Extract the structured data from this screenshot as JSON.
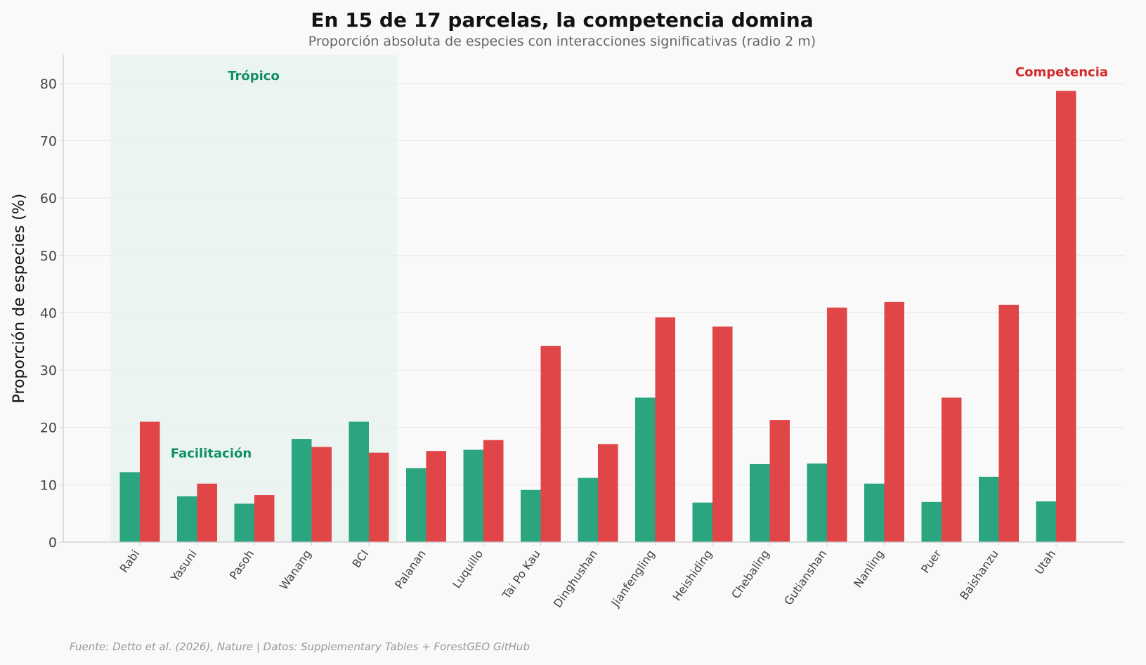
{
  "chart_data": {
    "type": "bar",
    "title": "En 15 de 17 parcelas, la competencia domina",
    "subtitle": "Proporción absoluta de especies con interacciones significativas (radio 2 m)",
    "ylabel": "Proporción de especies (%)",
    "xlabel": "",
    "ylim": [
      0,
      85
    ],
    "yticks": [
      0,
      10,
      20,
      30,
      40,
      50,
      60,
      70,
      80
    ],
    "grid": "horizontal",
    "categories": [
      "Rabi",
      "Yasuni",
      "Pasoh",
      "Wanang",
      "BCI",
      "Palanan",
      "Luquillo",
      "Tai Po Kau",
      "Dinghushan",
      "Jianfengling",
      "Heishiding",
      "Chebaling",
      "Gutianshan",
      "Nanling",
      "Puer",
      "Baishanzu",
      "Utah"
    ],
    "series": [
      {
        "name": "Facilitación",
        "color": "#2aa580",
        "values": [
          12.2,
          8.0,
          6.7,
          18.0,
          21.0,
          12.9,
          16.1,
          9.1,
          11.2,
          25.2,
          6.9,
          13.6,
          13.7,
          10.2,
          7.0,
          11.4,
          7.1
        ]
      },
      {
        "name": "Competencia",
        "color": "#e04547",
        "values": [
          21.0,
          10.2,
          8.2,
          16.6,
          15.6,
          15.9,
          17.8,
          34.2,
          17.1,
          39.2,
          37.6,
          21.3,
          40.9,
          41.9,
          25.2,
          41.4,
          78.7
        ]
      }
    ],
    "shaded_region": {
      "label": "Trópico",
      "from_category": "Rabi",
      "to_category": "BCI",
      "color": "#e7f2ed"
    },
    "annotations": [
      {
        "text": "Facilitación",
        "series": 0,
        "category": "Yasuni",
        "value": 14.5,
        "color": "#0e8f62"
      },
      {
        "text": "Competencia",
        "series": 1,
        "category": "Utah",
        "value": 81,
        "color": "#d42a2a"
      }
    ],
    "footer": "Fuente: Detto et al. (2026), Nature | Datos: Supplementary Tables + ForestGEO GitHub"
  }
}
